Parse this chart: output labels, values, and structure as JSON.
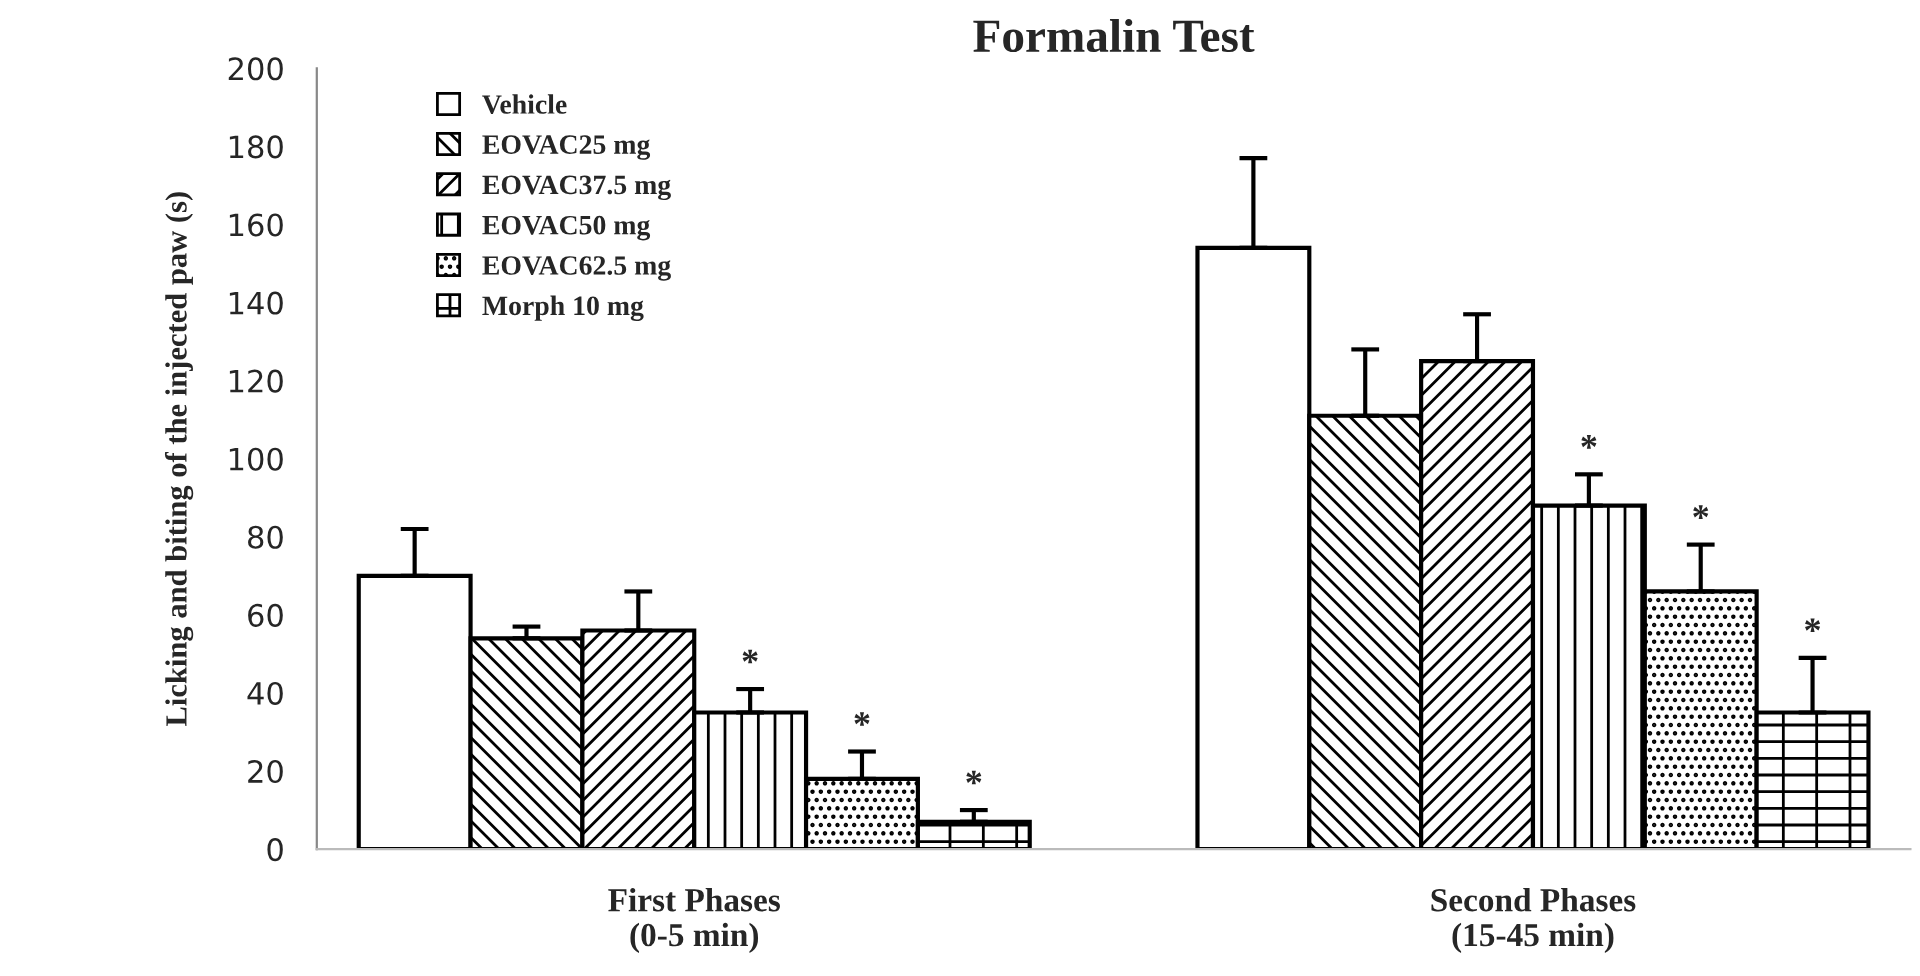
{
  "chart_data": {
    "type": "bar",
    "title": "Formalin Test",
    "ylabel": "Licking and biting of the injected paw (s)",
    "categories": [
      "First Phases\n(0-5 min)",
      "Second Phases\n(15-45 min)"
    ],
    "series": [
      {
        "name": "Vehicle",
        "color": "#ffffff",
        "values": [
          70,
          154
        ],
        "errors": [
          12,
          23
        ]
      },
      {
        "name": "EOVAC25 mg",
        "color": "#000000",
        "values": [
          54,
          111
        ],
        "errors": [
          3,
          17
        ]
      },
      {
        "name": "EOVAC37.5 mg",
        "color": "#000000",
        "values": [
          56,
          125
        ],
        "errors": [
          10,
          12
        ]
      },
      {
        "name": "EOVAC50 mg",
        "color": "#000000",
        "values": [
          35,
          88
        ],
        "errors": [
          6,
          8
        ],
        "value_labels": [
          "*",
          "*"
        ]
      },
      {
        "name": "EOVAC62.5 mg",
        "color": "#000000",
        "values": [
          18,
          66
        ],
        "errors": [
          7,
          12
        ],
        "value_labels": [
          "*",
          "*"
        ]
      },
      {
        "name": "Morph 10 mg",
        "color": "#000000",
        "values": [
          7,
          35
        ],
        "errors": [
          3,
          14
        ],
        "value_labels": [
          "*",
          "*"
        ]
      }
    ],
    "ylim": [
      0,
      200
    ],
    "yticks": [
      0,
      20,
      40,
      60,
      80,
      100,
      120,
      140,
      160,
      180,
      200
    ],
    "grid": false,
    "legend": "top left"
  }
}
